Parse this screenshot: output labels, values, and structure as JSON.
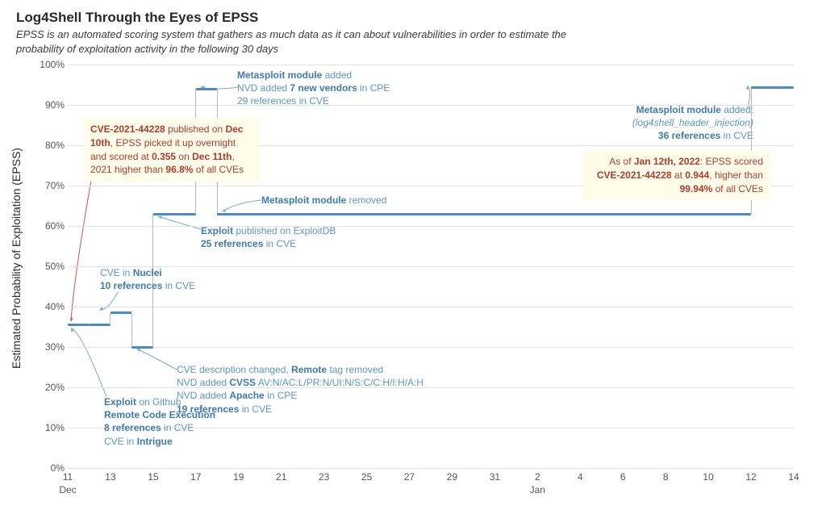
{
  "title": "Log4Shell Through the Eyes of EPSS",
  "subtitle": "EPSS is an automated scoring system that gathers as much data as it can about vulnerabilities in order to estimate the probability of exploitation activity in the following 30 days",
  "ylabel": "Estimated Probability of Exploitation (EPSS)",
  "chart": {
    "type": "step-line",
    "y": {
      "min": 0,
      "max": 100,
      "step": 10,
      "suffix": "%"
    },
    "x": {
      "ticks": [
        {
          "label": "11",
          "pos": 0,
          "month": "Dec"
        },
        {
          "label": "13",
          "pos": 2
        },
        {
          "label": "15",
          "pos": 4
        },
        {
          "label": "17",
          "pos": 6
        },
        {
          "label": "19",
          "pos": 8
        },
        {
          "label": "21",
          "pos": 10
        },
        {
          "label": "23",
          "pos": 12
        },
        {
          "label": "25",
          "pos": 14
        },
        {
          "label": "27",
          "pos": 16
        },
        {
          "label": "29",
          "pos": 18
        },
        {
          "label": "31",
          "pos": 20
        },
        {
          "label": "2",
          "pos": 22,
          "month": "Jan"
        },
        {
          "label": "4",
          "pos": 24
        },
        {
          "label": "6",
          "pos": 26
        },
        {
          "label": "8",
          "pos": 28
        },
        {
          "label": "10",
          "pos": 30
        },
        {
          "label": "12",
          "pos": 32
        },
        {
          "label": "14",
          "pos": 34
        }
      ],
      "range": 34
    },
    "series_color": "#4a8bc4",
    "grid_color": "#e2e2e2",
    "step_points": [
      {
        "x": 0,
        "y": 35.5
      },
      {
        "x": 1,
        "y": 35.5
      },
      {
        "x": 2,
        "y": 38.5
      },
      {
        "x": 3,
        "y": 30.0
      },
      {
        "x": 4,
        "y": 63.0
      },
      {
        "x": 6,
        "y": 94.0
      },
      {
        "x": 7,
        "y": 63.0
      },
      {
        "x": 32,
        "y": 94.4
      },
      {
        "x": 34,
        "y": 94.4
      }
    ]
  },
  "redboxes": {
    "left": {
      "html": "<b>CVE-2021-44228</b> published on <b>Dec 10th</b>, EPSS picked it up overnight and scored at <b>0.355</b> on <b>Dec 11th</b>, 2021 higher than <b>96.8%</b> of all CVEs"
    },
    "right": {
      "html": "As of <b>Jan 12th, 2022</b>: EPSS scored <b>CVE-2021-44228</b> at <b>0.944</b>, higher than <b>99.94%</b> of all CVEs"
    }
  },
  "callouts": {
    "c1": {
      "html": "<b>Exploit</b> on Github<br><b>Remote Code Execution</b><br><b>8 references</b> in CVE<br>CVE in <b>Intrigue</b>"
    },
    "c2": {
      "html": "CVE in <b>Nuclei</b><br><b>10 references</b> in CVE"
    },
    "c3": {
      "html": "CVE description changed, <b>Remote</b> tag removed<br>NVD added <b>CVSS</b> AV:N/AC:L/PR:N/UI:N/S:C/C:H/I:H/A:H<br>NVD added <b>Apache</b> in CPE<br><b>19 references</b> in CVE"
    },
    "c4": {
      "html": "<b>Exploit</b> published on ExploitDB<br><b>25 references</b> in CVE"
    },
    "c5": {
      "html": "<b>Metasploit module</b> added<br>NVD added <b>7 new vendors</b> in CPE<br>29 references in CVE"
    },
    "c6": {
      "html": "<b>Metasploit module</b> removed"
    },
    "c7": {
      "html": "<b>Metasploit module</b> added:<br><i>(log4shell_header_injection)</i><br><b>36 references</b> in CVE"
    }
  },
  "colors": {
    "text": "#2a2a2a",
    "callout_text": "#5d95c4",
    "red_text": "#b23a2e",
    "redbox_bg": "#fefde9",
    "line": "#4a8bc4",
    "step_connector": "#b8b8b8"
  }
}
